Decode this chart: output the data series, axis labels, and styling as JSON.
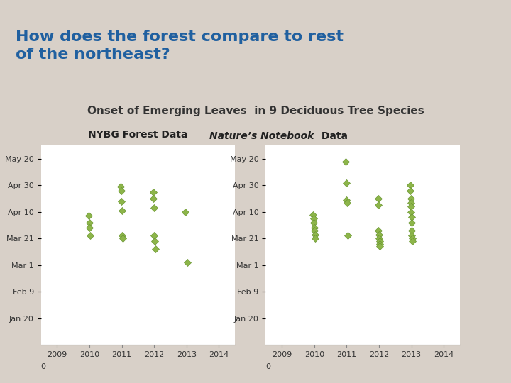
{
  "title": "How does the forest compare to rest\nof the northeast?",
  "subtitle": "Onset of Emerging Leaves  in 9 Deciduous Tree Species",
  "left_title": "NYBG Forest Data",
  "right_title": "Nature’s Notebook Data",
  "bg_color": "#d8d0c8",
  "chart_bg": "#ffffff",
  "marker_color": "#8db54a",
  "marker_edge": "#6a9632",
  "header_bg": "#c8c0b8",
  "date_labels": [
    "Jan 20",
    "Feb 9",
    "Mar 1",
    "Mar 21",
    "Apr 10",
    "Apr 30",
    "May 20"
  ],
  "date_values": [
    20,
    40,
    60,
    80,
    100,
    120,
    140
  ],
  "xlim": [
    2008.5,
    2014.5
  ],
  "ylim": [
    0,
    150
  ],
  "xticks": [
    2009,
    2010,
    2011,
    2012,
    2013,
    2014
  ],
  "left_data": {
    "2010": [
      97,
      92,
      88,
      82
    ],
    "2011": [
      119,
      116,
      108,
      101,
      82,
      80
    ],
    "2012": [
      115,
      110,
      103,
      82,
      78,
      72
    ],
    "2013": [
      100,
      62
    ]
  },
  "right_data": {
    "2010": [
      98,
      95,
      92,
      88,
      86,
      83,
      80
    ],
    "2011": [
      138,
      122,
      109,
      107,
      82
    ],
    "2012": [
      110,
      105,
      86,
      83,
      80,
      78,
      76,
      74
    ],
    "2013": [
      120,
      116,
      110,
      107,
      104,
      100,
      96,
      92,
      86,
      82,
      80,
      78
    ]
  },
  "orange_bar_color": "#e8a040",
  "blue_bar_color": "#6080a8"
}
